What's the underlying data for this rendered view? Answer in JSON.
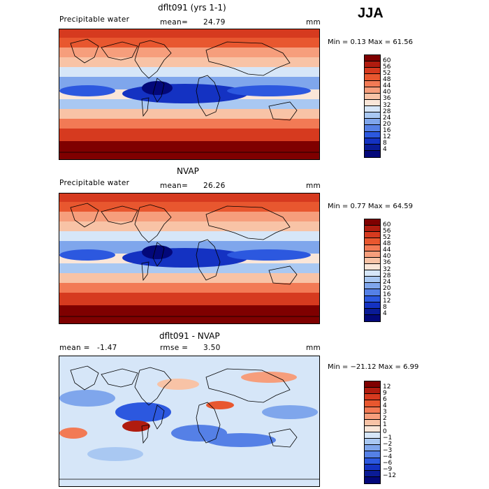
{
  "season": "JJA",
  "panels": [
    {
      "title": "dflt091 (yrs 1-1)",
      "left_label": "Precipitable water",
      "stat_label": "mean=",
      "stat_value": "24.79",
      "stat2_label": "",
      "stat2_value": "",
      "units": "mm",
      "min_max": "Min =    0.13 Max =   61.56",
      "colorbar": {
        "labels": [
          "60",
          "56",
          "52",
          "48",
          "44",
          "40",
          "36",
          "32",
          "28",
          "24",
          "20",
          "16",
          "12",
          "8",
          "4"
        ],
        "colors": [
          "#7f0000",
          "#b01c0f",
          "#d63a1f",
          "#e8572f",
          "#f27a55",
          "#f69e7c",
          "#f8c3a6",
          "#fae6d8",
          "#d6e6f8",
          "#a9c8f2",
          "#7fa6ec",
          "#5580e6",
          "#2c58df",
          "#1432c2",
          "#0a1b96",
          "#03087a"
        ]
      },
      "kind": "field"
    },
    {
      "title": "NVAP",
      "left_label": "Precipitable water",
      "stat_label": "mean=",
      "stat_value": "26.26",
      "stat2_label": "",
      "stat2_value": "",
      "units": "mm",
      "min_max": "Min =    0.77 Max =   64.59",
      "colorbar": {
        "labels": [
          "60",
          "56",
          "52",
          "48",
          "44",
          "40",
          "36",
          "32",
          "28",
          "24",
          "20",
          "16",
          "12",
          "8",
          "4"
        ],
        "colors": [
          "#7f0000",
          "#b01c0f",
          "#d63a1f",
          "#e8572f",
          "#f27a55",
          "#f69e7c",
          "#f8c3a6",
          "#fae6d8",
          "#d6e6f8",
          "#a9c8f2",
          "#7fa6ec",
          "#5580e6",
          "#2c58df",
          "#1432c2",
          "#0a1b96",
          "#03087a"
        ]
      },
      "kind": "field"
    },
    {
      "title": "dflt091 - NVAP",
      "left_label": "mean =",
      "stat_label": "",
      "stat_value": "-1.47",
      "stat2_label": "rmse =",
      "stat2_value": "3.50",
      "units": "mm",
      "min_max": "Min = −21.12 Max =    6.99",
      "colorbar": {
        "labels": [
          "12",
          "9",
          "6",
          "4",
          "3",
          "2",
          "1",
          "0",
          "−1",
          "−2",
          "−3",
          "−4",
          "−6",
          "−9",
          "−12"
        ],
        "colors": [
          "#7f0000",
          "#b01c0f",
          "#d63a1f",
          "#e8572f",
          "#f27a55",
          "#f69e7c",
          "#f8c3a6",
          "#fae6d8",
          "#d6e6f8",
          "#a9c8f2",
          "#7fa6ec",
          "#5580e6",
          "#2c58df",
          "#1432c2",
          "#0a1b96",
          "#03087a"
        ]
      },
      "kind": "diff"
    }
  ]
}
